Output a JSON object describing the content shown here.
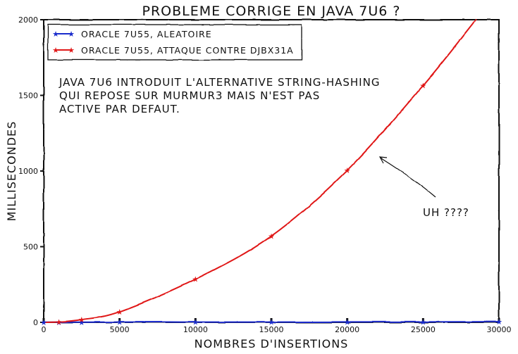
{
  "chart_data": {
    "type": "line",
    "title": "Probleme corrige en Java 7u6 ?",
    "xlabel": "Nombres d'insertions",
    "ylabel": "Millisecondes",
    "xlim": [
      0,
      30000
    ],
    "ylim": [
      0,
      2000
    ],
    "x_ticks": [
      0,
      5000,
      10000,
      15000,
      20000,
      25000,
      30000
    ],
    "y_ticks": [
      0,
      500,
      1000,
      1500,
      2000
    ],
    "grid": false,
    "legend_position": "top-left",
    "series": [
      {
        "name": "Oracle 7u55, aleatoire",
        "color": "#1a2ccc",
        "marker": "star",
        "x": [
          0,
          1000,
          2500,
          5000,
          10000,
          15000,
          20000,
          25000,
          30000
        ],
        "y": [
          1,
          1,
          1,
          2,
          2,
          2,
          3,
          3,
          4
        ]
      },
      {
        "name": "Oracle 7u55, attaque contre djbx31a",
        "color": "#e01818",
        "marker": "star",
        "x": [
          0,
          1000,
          2500,
          5000,
          10000,
          15000,
          20000,
          25000,
          28500
        ],
        "y": [
          0,
          3,
          18,
          70,
          285,
          570,
          1005,
          1565,
          2000
        ],
        "marker_x": [
          1000,
          2500,
          5000,
          10000,
          15000,
          20000,
          25000
        ]
      }
    ],
    "annotations": [
      {
        "lines": [
          "Java 7u6 introduit l'alternative String-hashing",
          "qui repose sur Murmur3 mais n'est pas",
          "active par defaut."
        ]
      },
      {
        "text": "uh ????",
        "arrow_to": [
          22000,
          1090
        ]
      }
    ]
  }
}
